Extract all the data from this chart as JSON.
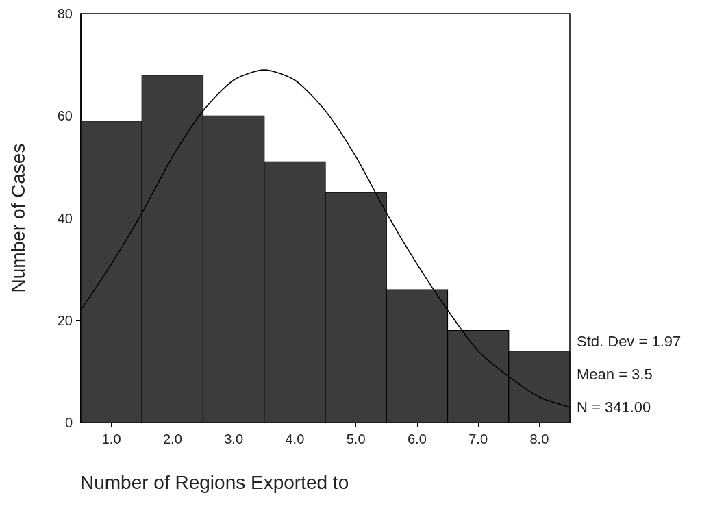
{
  "chart_data": {
    "type": "histogram",
    "xlabel": "Number of Regions Exported to",
    "ylabel": "Number of Cases",
    "annotations": [
      "Std. Dev = 1.97",
      "Mean = 3.5",
      "N = 341.00"
    ],
    "series": [
      {
        "color": "#3c3c3c",
        "bins": [
          0.5,
          1.5,
          2.5,
          3.5,
          4.5,
          5.5,
          6.5,
          7.5,
          8.5
        ],
        "values": [
          59,
          68,
          60,
          51,
          45,
          26,
          18,
          14
        ]
      },
      {
        "type": "line",
        "color": "#000000",
        "x": [
          0.5,
          1,
          1.5,
          2,
          2.5,
          3,
          3.5,
          4,
          4.5,
          5,
          5.5,
          6,
          6.5,
          7,
          7.5,
          8,
          8.5
        ],
        "values": [
          22,
          31,
          41,
          52,
          61,
          67,
          69,
          67,
          61,
          52,
          41,
          31,
          22,
          14,
          9,
          5,
          3
        ]
      }
    ],
    "xlim": [
      0.5,
      8.5
    ],
    "xticks": [
      {
        "value": 1,
        "label": "1.0"
      },
      {
        "value": 2,
        "label": "2.0"
      },
      {
        "value": 3,
        "label": "3.0"
      },
      {
        "value": 4,
        "label": "4.0"
      },
      {
        "value": 5,
        "label": "5.0"
      },
      {
        "value": 6,
        "label": "6.0"
      },
      {
        "value": 7,
        "label": "7.0"
      },
      {
        "value": 8,
        "label": "8.0"
      }
    ],
    "ylim": [
      0,
      80
    ],
    "yticks": [
      0,
      20,
      40,
      60,
      80
    ],
    "grid": false,
    "marker": "none"
  }
}
